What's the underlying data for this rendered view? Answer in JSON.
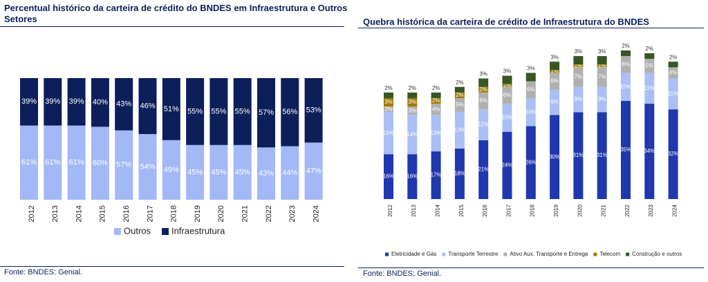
{
  "chart_data": [
    {
      "type": "bar",
      "stacked": true,
      "title": "Percentual histórico da carteira de crédito do BNDES em Infraestrutura e Outros Setores",
      "source": "Fonte: BNDES: Genial.",
      "legend": "bottom",
      "categories": [
        "2012",
        "2013",
        "2014",
        "2015",
        "2016",
        "2017",
        "2018",
        "2019",
        "2020",
        "2021",
        "2022",
        "2023",
        "2024"
      ],
      "series": [
        {
          "name": "Outros",
          "color": "#a3b8f6",
          "values": [
            61,
            61,
            61,
            60,
            57,
            54,
            49,
            45,
            45,
            45,
            43,
            44,
            47
          ],
          "value_labels": [
            "61%",
            "61%",
            "61%",
            "60%",
            "57%",
            "54%",
            "49%",
            "45%",
            "45%",
            "45%",
            "43%",
            "44%",
            "47%"
          ]
        },
        {
          "name": "Infraestrutura",
          "color": "#0c1f5b",
          "values": [
            39,
            39,
            39,
            40,
            43,
            46,
            51,
            55,
            55,
            55,
            57,
            56,
            53
          ],
          "value_labels": [
            "39%",
            "39%",
            "39%",
            "40%",
            "43%",
            "46%",
            "51%",
            "55%",
            "55%",
            "55%",
            "57%",
            "56%",
            "53%"
          ]
        }
      ]
    },
    {
      "type": "bar",
      "stacked": true,
      "title": "Quebra histórica da carteira de crédito de Infraestrutura do BNDES",
      "source": "Fonte: BNDES; Genial.",
      "legend": "bottom",
      "categories": [
        "2012",
        "2013",
        "2014",
        "2015",
        "2016",
        "2017",
        "2018",
        "2019",
        "2020",
        "2021",
        "2022",
        "2023",
        "2024"
      ],
      "series": [
        {
          "name": "Eletricidade e Gás",
          "color": "#1f38ae",
          "values": [
            16,
            16,
            17,
            18,
            21,
            24,
            26,
            30,
            31,
            31,
            35,
            34,
            32
          ],
          "value_labels": [
            "16%",
            "16%",
            "17%",
            "18%",
            "21%",
            "24%",
            "26%",
            "30%",
            "31%",
            "31%",
            "35%",
            "34%",
            "32%"
          ]
        },
        {
          "name": "Transporte Terrestre",
          "color": "#a9bff5",
          "values": [
            15,
            14,
            13,
            13,
            11,
            10,
            10,
            9,
            9,
            9,
            10,
            11,
            11
          ],
          "value_labels": [
            "15%",
            "14%",
            "13%",
            "13%",
            "11%",
            "10%",
            "10%",
            "9%",
            "9%",
            "9%",
            "10%",
            "11%",
            "11%"
          ]
        },
        {
          "name": "Ativo Aux. Transporte e Entrega",
          "color": "#b0b0b0",
          "values": [
            2,
            3,
            4,
            5,
            6,
            6,
            6,
            6,
            7,
            7,
            6,
            5,
            4
          ],
          "value_labels": [
            "2%",
            "3%",
            "4%",
            "5%",
            "6%",
            "6%",
            "6%",
            "6%",
            "7%",
            "7%",
            "6%",
            "5%",
            "4%"
          ]
        },
        {
          "name": "Telecom",
          "color": "#a07c06",
          "values": [
            3,
            3,
            2,
            2,
            2,
            1,
            null,
            1,
            1,
            1,
            null,
            null,
            null
          ],
          "value_labels": [
            "3%",
            "3%",
            "2%",
            "2%",
            "2%",
            "1%",
            null,
            "1%",
            "1%",
            "1%",
            null,
            null,
            null
          ]
        },
        {
          "name": "Construção e outros",
          "color": "#375623",
          "values": [
            2,
            2,
            2,
            2,
            3,
            3,
            3,
            3,
            3,
            3,
            2,
            2,
            2
          ],
          "value_labels": [
            "2%",
            "2%",
            "2%",
            "2%",
            "3%",
            "3%",
            "3%",
            "3%",
            "3%",
            "3%",
            "2%",
            "2%",
            "2%"
          ]
        }
      ]
    }
  ]
}
